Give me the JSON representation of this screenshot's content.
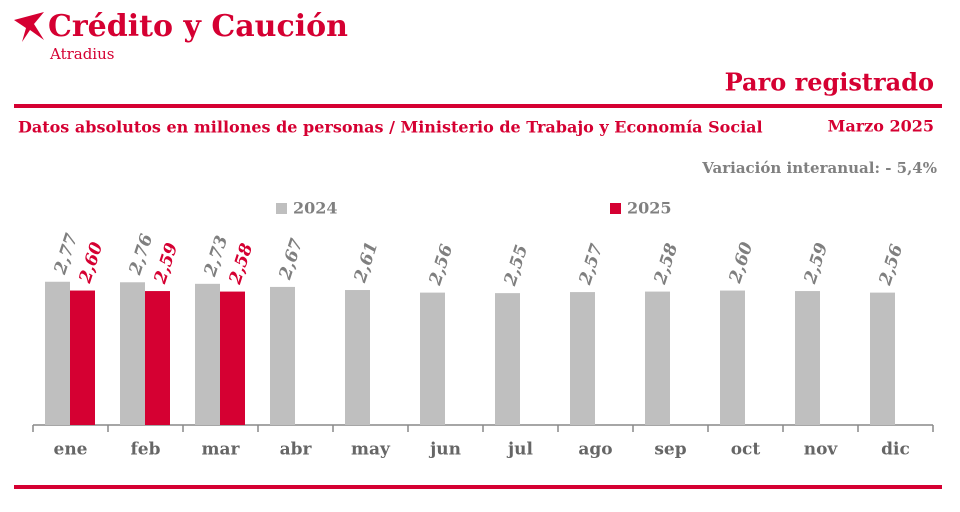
{
  "brand": "Crédito y Caución",
  "brand_sub": "Atradius",
  "chart_data": {
    "type": "bar",
    "title": "Paro registrado",
    "subtitle": "Datos absolutos en millones de personas / Ministerio de Trabajo y Economía Social",
    "date": "Marzo 2025",
    "annotation": "Variación interanual: - 5,4%",
    "categories": [
      "ene",
      "feb",
      "mar",
      "abr",
      "may",
      "jun",
      "jul",
      "ago",
      "sep",
      "oct",
      "nov",
      "dic"
    ],
    "series": [
      {
        "name": "2024",
        "color": "#bfbfbf",
        "label_color": "#7f7f7f",
        "values": [
          2.77,
          2.76,
          2.73,
          2.67,
          2.61,
          2.56,
          2.55,
          2.57,
          2.58,
          2.6,
          2.59,
          2.56
        ],
        "value_labels": [
          "2,77",
          "2,76",
          "2,73",
          "2,67",
          "2,61",
          "2,56",
          "2,55",
          "2,57",
          "2,58",
          "2,60",
          "2,59",
          "2,56"
        ]
      },
      {
        "name": "2025",
        "color": "#d50032",
        "label_color": "#d50032",
        "values": [
          2.6,
          2.59,
          2.58,
          null,
          null,
          null,
          null,
          null,
          null,
          null,
          null,
          null
        ],
        "value_labels": [
          "2,60",
          "2,59",
          "2,58",
          null,
          null,
          null,
          null,
          null,
          null,
          null,
          null,
          null
        ]
      }
    ],
    "ylim": [
      0,
      3.5
    ],
    "grid": false,
    "legend": "top"
  }
}
